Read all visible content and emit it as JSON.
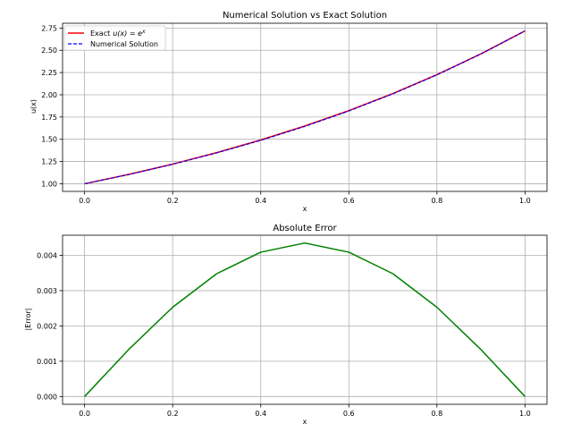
{
  "chart_data": [
    {
      "type": "line",
      "title": "Numerical Solution vs Exact Solution",
      "xlabel": "x",
      "ylabel": "u(x)",
      "xlim": [
        -0.05,
        1.05
      ],
      "ylim": [
        0.914,
        2.804
      ],
      "xticks": [
        "0.0",
        "0.2",
        "0.4",
        "0.6",
        "0.8",
        "1.0"
      ],
      "yticks": [
        "1.00",
        "1.25",
        "1.50",
        "1.75",
        "2.00",
        "2.25",
        "2.50",
        "2.75"
      ],
      "grid": true,
      "legend": "top-left",
      "legend_exact_prefix": "Exact",
      "legend_exact_math": "u(x) = e",
      "legend_exact_sup": "x",
      "series": [
        {
          "name": "Exact u(x) = e^x",
          "color": "#ff0000",
          "style": "solid",
          "x": [
            0,
            0.1,
            0.2,
            0.3,
            0.4,
            0.5,
            0.6,
            0.7,
            0.8,
            0.9,
            1.0
          ],
          "values": [
            1.0,
            1.105,
            1.221,
            1.35,
            1.492,
            1.649,
            1.822,
            2.014,
            2.226,
            2.46,
            2.718
          ]
        },
        {
          "name": "Numerical Solution",
          "color": "#0000ff",
          "style": "dashed",
          "x": [
            0,
            0.1,
            0.2,
            0.3,
            0.4,
            0.5,
            0.6,
            0.7,
            0.8,
            0.9,
            1.0
          ],
          "values": [
            1.0,
            1.1034,
            1.2184,
            1.3465,
            1.4878,
            1.6444,
            1.818,
            2.0103,
            2.2234,
            2.4584,
            2.718
          ]
        }
      ]
    },
    {
      "type": "line",
      "title": "Absolute Error",
      "xlabel": "x",
      "ylabel": "|Error|",
      "xlim": [
        -0.05,
        1.05
      ],
      "ylim": [
        -0.00022,
        0.00457
      ],
      "xticks": [
        "0.0",
        "0.2",
        "0.4",
        "0.6",
        "0.8",
        "1.0"
      ],
      "yticks": [
        "0.000",
        "0.001",
        "0.002",
        "0.003",
        "0.004"
      ],
      "grid": true,
      "series": [
        {
          "color": "#008000",
          "style": "solid",
          "x": [
            0,
            0.1,
            0.2,
            0.3,
            0.4,
            0.5,
            0.6,
            0.7,
            0.8,
            0.9,
            1.0
          ],
          "values": [
            0.0,
            0.00133,
            0.00253,
            0.00348,
            0.00409,
            0.00435,
            0.00409,
            0.00348,
            0.00253,
            0.00133,
            0.0
          ]
        }
      ]
    }
  ]
}
